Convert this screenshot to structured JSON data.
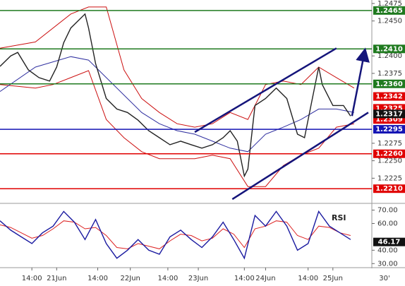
{
  "chart_data": [
    {
      "type": "line",
      "xlim": [
        0,
        105
      ],
      "ylim": [
        1.219,
        1.248
      ],
      "yticks": [
        1.2475,
        {
          "value": 1.245,
          "label": "1.2450"
        },
        {
          "value": 1.24,
          "label": "1.2400"
        },
        1.2375,
        1.2275,
        {
          "value": 1.225,
          "label": "1.2250"
        },
        1.2225
      ],
      "levels": [
        {
          "value": 1.2465,
          "label": "1.2465",
          "color": "#1f7a1f"
        },
        {
          "value": 1.241,
          "label": "1.2410",
          "color": "#1f7a1f"
        },
        {
          "value": 1.236,
          "label": "1.2360",
          "color": "#1f7a1f"
        },
        {
          "value": 1.2295,
          "label": "1.2295",
          "color": "#1414b4"
        },
        {
          "value": 1.226,
          "label": "1.2260",
          "color": "#e00000"
        },
        {
          "value": 1.221,
          "label": "1.2210",
          "color": "#e00000"
        }
      ],
      "price_labels": [
        {
          "value": 1.2342,
          "label": "1.2342",
          "color": "#e00000"
        },
        {
          "value": 1.2325,
          "label": "1.2325",
          "color": "#e00000"
        },
        {
          "value": 1.2309,
          "label": "1.2309",
          "color": "#e00000"
        },
        {
          "value": 1.2317,
          "label": "1.2317",
          "color": "#111111"
        }
      ],
      "series": [
        {
          "color": "#cc1010",
          "x": [
            0,
            10,
            20,
            25,
            30,
            35,
            40,
            45,
            50,
            55,
            60,
            65,
            70,
            75,
            80,
            85,
            90,
            95,
            100
          ],
          "values": [
            1.2411,
            1.242,
            1.246,
            1.247,
            1.247,
            1.238,
            1.2339,
            1.2319,
            1.2303,
            1.2298,
            1.2303,
            1.2319,
            1.2309,
            1.2359,
            1.2364,
            1.2359,
            1.2384,
            1.2369,
            1.2354
          ]
        },
        {
          "color": "#cc1010",
          "x": [
            0,
            10,
            15,
            20,
            25,
            30,
            35,
            40,
            45,
            50,
            55,
            60,
            65,
            70,
            75,
            80,
            85,
            90,
            95,
            100
          ],
          "values": [
            1.2359,
            1.2354,
            1.2359,
            1.2369,
            1.2379,
            1.2309,
            1.2283,
            1.2263,
            1.2253,
            1.2253,
            1.2253,
            1.2258,
            1.2253,
            1.2213,
            1.2213,
            1.2243,
            1.2258,
            1.2268,
            1.2298,
            1.2303
          ]
        },
        {
          "color": "#3030a0",
          "x": [
            0,
            10,
            20,
            25,
            30,
            35,
            40,
            45,
            50,
            55,
            60,
            65,
            70,
            75,
            80,
            85,
            90,
            95,
            100
          ],
          "values": [
            1.2349,
            1.2384,
            1.2399,
            1.2394,
            1.2369,
            1.2344,
            1.2319,
            1.2303,
            1.2293,
            1.2288,
            1.2278,
            1.2268,
            1.2263,
            1.2288,
            1.2298,
            1.2309,
            1.2324,
            1.2324,
            1.2319
          ]
        },
        {
          "color": "#222222",
          "x": [
            0,
            3,
            5,
            8,
            11,
            14,
            16,
            18,
            20,
            22,
            24,
            25,
            27,
            30,
            33,
            36,
            39,
            42,
            45,
            48,
            51,
            54,
            57,
            60,
            63,
            65,
            67,
            69,
            70,
            72,
            75,
            78,
            81,
            84,
            86,
            88,
            90,
            91,
            94,
            97,
            99
          ],
          "values": [
            1.2385,
            1.24,
            1.2405,
            1.238,
            1.2369,
            1.2364,
            1.2384,
            1.2419,
            1.244,
            1.245,
            1.246,
            1.244,
            1.2389,
            1.2339,
            1.2324,
            1.2319,
            1.2308,
            1.2293,
            1.2283,
            1.2273,
            1.2278,
            1.2273,
            1.2268,
            1.2273,
            1.2283,
            1.2293,
            1.2278,
            1.2228,
            1.2238,
            1.2329,
            1.2339,
            1.2354,
            1.2339,
            1.2288,
            1.2283,
            1.2334,
            1.2384,
            1.2359,
            1.2329,
            1.2329,
            1.2314
          ]
        }
      ],
      "trendlines": [
        {
          "x": [
            55,
            95
          ],
          "values": [
            1.2291,
            1.2411
          ],
          "color": "#14147a"
        },
        {
          "x": [
            65.6,
            104
          ],
          "values": [
            1.2195,
            1.2319
          ],
          "color": "#14147a"
        },
        {
          "x": [
            99.4,
            103
          ],
          "values": [
            1.2314,
            1.2407
          ],
          "color": "#14147a",
          "arrow": true
        }
      ]
    },
    {
      "type": "line",
      "title": "RSI",
      "xlim": [
        0,
        105
      ],
      "ylim": [
        27.5,
        74.5
      ],
      "yticks": [
        {
          "value": 70,
          "label": "70.00"
        },
        {
          "value": 60,
          "label": "60.00"
        },
        {
          "value": 40,
          "label": "40.00"
        },
        {
          "value": 30,
          "label": "30.00"
        }
      ],
      "price_labels": [
        {
          "value": 46.17,
          "label": "46.17",
          "color": "#111111"
        }
      ],
      "xticks": [
        {
          "value": 9,
          "label": "14:00"
        },
        {
          "value": 16,
          "label": "21Jun"
        },
        {
          "value": 27.6,
          "label": "14:00"
        },
        {
          "value": 36.8,
          "label": "22Jun"
        },
        {
          "value": 47.4,
          "label": "14:00"
        },
        {
          "value": 56,
          "label": "23Jun"
        },
        {
          "value": 69,
          "label": "14:00"
        },
        {
          "value": 75,
          "label": "24Jun"
        },
        {
          "value": 87,
          "label": "14:00"
        },
        {
          "value": 94,
          "label": "25Jun"
        }
      ],
      "timeframe_label": "30'",
      "series": [
        {
          "color": "#dd2222",
          "x": [
            0,
            3,
            6,
            9,
            12,
            15,
            18,
            21,
            24,
            27,
            30,
            33,
            36,
            39,
            42,
            45,
            48,
            51,
            54,
            57,
            60,
            63,
            66,
            69,
            72,
            75,
            78,
            81,
            84,
            87,
            90,
            93,
            96,
            99
          ],
          "values": [
            59,
            57,
            53,
            49,
            51,
            56,
            62,
            61,
            56,
            57,
            51,
            42,
            41,
            45,
            43,
            41,
            47,
            52,
            51,
            47,
            49,
            56,
            52,
            42,
            56,
            58,
            62,
            61,
            51,
            48,
            58,
            57,
            53,
            51
          ]
        },
        {
          "color": "#1a1aa0",
          "x": [
            0,
            3,
            6,
            9,
            12,
            15,
            18,
            21,
            24,
            27,
            30,
            33,
            36,
            39,
            42,
            45,
            48,
            51,
            54,
            57,
            60,
            63,
            66,
            69,
            72,
            75,
            78,
            81,
            84,
            87,
            90,
            93,
            96,
            99
          ],
          "values": [
            62,
            55,
            50,
            45,
            53,
            58,
            69,
            61,
            48,
            63,
            45,
            34,
            40,
            48,
            40,
            37,
            50,
            55,
            48,
            42,
            50,
            61,
            48,
            34,
            66,
            58,
            69,
            58,
            40,
            45,
            69,
            58,
            53,
            48
          ]
        }
      ]
    }
  ]
}
